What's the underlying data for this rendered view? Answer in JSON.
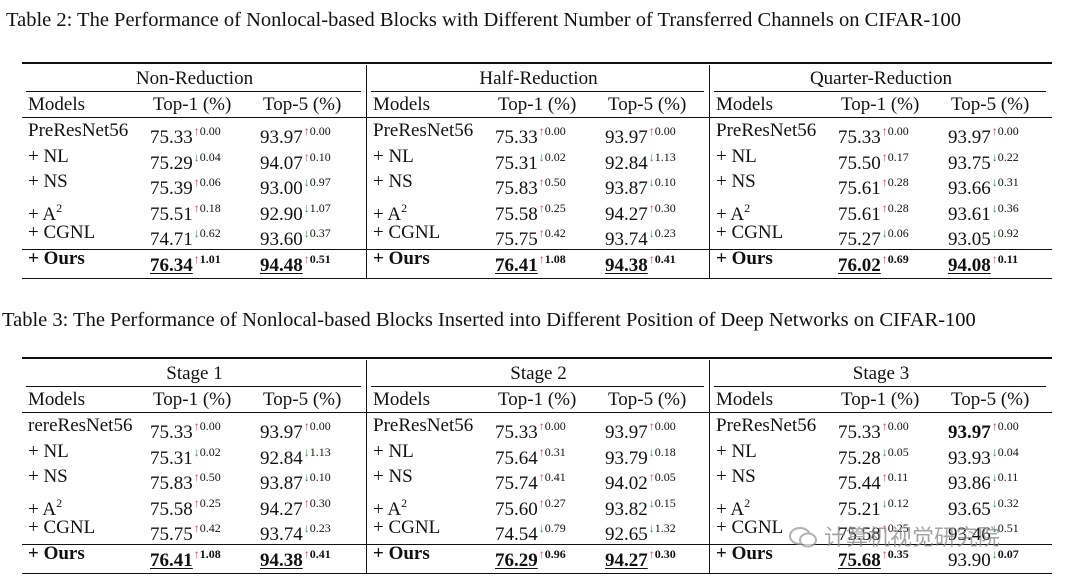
{
  "caption_table2": "Table 2: The Performance of Nonlocal-based Blocks with Different Number of Transferred Channels on CIFAR-100",
  "caption_table3": "Table 3: The Performance of Nonlocal-based Blocks Inserted into Different Position of Deep Networks on CIFAR-100",
  "watermark": "计算机视觉研究院",
  "colors": {
    "up": "#dd4444",
    "down": "#2a9a3a",
    "text": "#111111"
  },
  "table2": {
    "groups": [
      {
        "title": "Non-Reduction",
        "headers": [
          "Models",
          "Top-1 (%)",
          "Top-5 (%)"
        ],
        "rows": [
          {
            "model": "PreResNet56",
            "sup": "",
            "top1": "75.33",
            "d1": "↑0.00",
            "top5": "93.97",
            "d5": "↑0.00",
            "bold": false,
            "u1": false,
            "u5": false
          },
          {
            "model": "+ NL",
            "sup": "",
            "top1": "75.29",
            "d1": "↓0.04",
            "top5": "94.07",
            "d5": "↑0.10",
            "bold": false,
            "u1": false,
            "u5": false
          },
          {
            "model": "+ NS",
            "sup": "",
            "top1": "75.39",
            "d1": "↑0.06",
            "top5": "93.00",
            "d5": "↓0.97",
            "bold": false,
            "u1": false,
            "u5": false
          },
          {
            "model": "+ A",
            "sup": "2",
            "top1": "75.51",
            "d1": "↑0.18",
            "top5": "92.90",
            "d5": "↓1.07",
            "bold": false,
            "u1": false,
            "u5": false
          },
          {
            "model": "+ CGNL",
            "sup": "",
            "top1": "74.71",
            "d1": "↓0.62",
            "top5": "93.60",
            "d5": "↓0.37",
            "bold": false,
            "u1": false,
            "u5": false
          },
          {
            "model": "+ Ours",
            "sup": "",
            "top1": "76.34",
            "d1": "↑1.01",
            "top5": "94.48",
            "d5": "↑0.51",
            "bold": true,
            "u1": true,
            "u5": true
          }
        ]
      },
      {
        "title": "Half-Reduction",
        "headers": [
          "Models",
          "Top-1 (%)",
          "Top-5 (%)"
        ],
        "rows": [
          {
            "model": "PreResNet56",
            "sup": "",
            "top1": "75.33",
            "d1": "↑0.00",
            "top5": "93.97",
            "d5": "↑0.00",
            "bold": false,
            "u1": false,
            "u5": false
          },
          {
            "model": "+ NL",
            "sup": "",
            "top1": "75.31",
            "d1": "↓0.02",
            "top5": "92.84",
            "d5": "↓1.13",
            "bold": false,
            "u1": false,
            "u5": false
          },
          {
            "model": "+ NS",
            "sup": "",
            "top1": "75.83",
            "d1": "↑0.50",
            "top5": "93.87",
            "d5": "↓0.10",
            "bold": false,
            "u1": false,
            "u5": false
          },
          {
            "model": "+ A",
            "sup": "2",
            "top1": "75.58",
            "d1": "↑0.25",
            "top5": "94.27",
            "d5": "↑0.30",
            "bold": false,
            "u1": false,
            "u5": false
          },
          {
            "model": "+ CGNL",
            "sup": "",
            "top1": "75.75",
            "d1": "↑0.42",
            "top5": "93.74",
            "d5": "↓0.23",
            "bold": false,
            "u1": false,
            "u5": false
          },
          {
            "model": "+ Ours",
            "sup": "",
            "top1": "76.41",
            "d1": "↑1.08",
            "top5": "94.38",
            "d5": "↑0.41",
            "bold": true,
            "u1": true,
            "u5": true
          }
        ]
      },
      {
        "title": "Quarter-Reduction",
        "headers": [
          "Models",
          "Top-1 (%)",
          "Top-5 (%)"
        ],
        "rows": [
          {
            "model": "PreResNet56",
            "sup": "",
            "top1": "75.33",
            "d1": "↑0.00",
            "top5": "93.97",
            "d5": "↑0.00",
            "bold": false,
            "u1": false,
            "u5": false
          },
          {
            "model": "+ NL",
            "sup": "",
            "top1": "75.50",
            "d1": "↑0.17",
            "top5": "93.75",
            "d5": "↓0.22",
            "bold": false,
            "u1": false,
            "u5": false
          },
          {
            "model": "+ NS",
            "sup": "",
            "top1": "75.61",
            "d1": "↑0.28",
            "top5": "93.66",
            "d5": "↓0.31",
            "bold": false,
            "u1": false,
            "u5": false
          },
          {
            "model": "+ A",
            "sup": "2",
            "top1": "75.61",
            "d1": "↑0.28",
            "top5": "93.61",
            "d5": "↓0.36",
            "bold": false,
            "u1": false,
            "u5": false
          },
          {
            "model": "+ CGNL",
            "sup": "",
            "top1": "75.27",
            "d1": "↓0.06",
            "top5": "93.05",
            "d5": "↓0.92",
            "bold": false,
            "u1": false,
            "u5": false
          },
          {
            "model": "+ Ours",
            "sup": "",
            "top1": "76.02",
            "d1": "↑0.69",
            "top5": "94.08",
            "d5": "↑0.11",
            "bold": true,
            "u1": true,
            "u5": true
          }
        ]
      }
    ]
  },
  "table3": {
    "groups": [
      {
        "title": "Stage 1",
        "headers": [
          "Models",
          "Top-1 (%)",
          "Top-5 (%)"
        ],
        "rows": [
          {
            "model": "rereResNet56",
            "sup": "",
            "top1": "75.33",
            "d1": "↑0.00",
            "top5": "93.97",
            "d5": "↑0.00",
            "bold": false,
            "u1": false,
            "u5": false
          },
          {
            "model": "+ NL",
            "sup": "",
            "top1": "75.31",
            "d1": "↓0.02",
            "top5": "92.84",
            "d5": "↓1.13",
            "bold": false,
            "u1": false,
            "u5": false
          },
          {
            "model": "+ NS",
            "sup": "",
            "top1": "75.83",
            "d1": "↑0.50",
            "top5": "93.87",
            "d5": "↓0.10",
            "bold": false,
            "u1": false,
            "u5": false
          },
          {
            "model": "+ A",
            "sup": "2",
            "top1": "75.58",
            "d1": "↑0.25",
            "top5": "94.27",
            "d5": "↑0.30",
            "bold": false,
            "u1": false,
            "u5": false
          },
          {
            "model": "+ CGNL",
            "sup": "",
            "top1": "75.75",
            "d1": "↑0.42",
            "top5": "93.74",
            "d5": "↓0.23",
            "bold": false,
            "u1": false,
            "u5": false
          },
          {
            "model": "+ Ours",
            "sup": "",
            "top1": "76.41",
            "d1": "↑1.08",
            "top5": "94.38",
            "d5": "↑0.41",
            "bold": true,
            "u1": true,
            "u5": true
          }
        ]
      },
      {
        "title": "Stage 2",
        "headers": [
          "Models",
          "Top-1 (%)",
          "Top-5 (%)"
        ],
        "rows": [
          {
            "model": "PreResNet56",
            "sup": "",
            "top1": "75.33",
            "d1": "↑0.00",
            "top5": "93.97",
            "d5": "↑0.00",
            "bold": false,
            "u1": false,
            "u5": false
          },
          {
            "model": "+ NL",
            "sup": "",
            "top1": "75.64",
            "d1": "↑0.31",
            "top5": "93.79",
            "d5": "↓0.18",
            "bold": false,
            "u1": false,
            "u5": false
          },
          {
            "model": "+ NS",
            "sup": "",
            "top1": "75.74",
            "d1": "↑0.41",
            "top5": "94.02",
            "d5": "↑0.05",
            "bold": false,
            "u1": false,
            "u5": false
          },
          {
            "model": "+ A",
            "sup": "2",
            "top1": "75.60",
            "d1": "↑0.27",
            "top5": "93.82",
            "d5": "↓0.15",
            "bold": false,
            "u1": false,
            "u5": false
          },
          {
            "model": "+ CGNL",
            "sup": "",
            "top1": "74.54",
            "d1": "↓0.79",
            "top5": "92.65",
            "d5": "↓1.32",
            "bold": false,
            "u1": false,
            "u5": false
          },
          {
            "model": "+ Ours",
            "sup": "",
            "top1": "76.29",
            "d1": "↑0.96",
            "top5": "94.27",
            "d5": "↑0.30",
            "bold": true,
            "u1": true,
            "u5": true
          }
        ]
      },
      {
        "title": "Stage 3",
        "headers": [
          "Models",
          "Top-1 (%)",
          "Top-5 (%)"
        ],
        "rows": [
          {
            "model": "PreResNet56",
            "sup": "",
            "top1": "75.33",
            "d1": "↑0.00",
            "top5": "93.97",
            "d5": "↑0.00",
            "bold": false,
            "u1": false,
            "u5": false,
            "bold5": true
          },
          {
            "model": "+ NL",
            "sup": "",
            "top1": "75.28",
            "d1": "↓0.05",
            "top5": "93.93",
            "d5": "↓0.04",
            "bold": false,
            "u1": false,
            "u5": false
          },
          {
            "model": "+ NS",
            "sup": "",
            "top1": "75.44",
            "d1": "↑0.11",
            "top5": "93.86",
            "d5": "↓0.11",
            "bold": false,
            "u1": false,
            "u5": false
          },
          {
            "model": "+ A",
            "sup": "2",
            "top1": "75.21",
            "d1": "↓0.12",
            "top5": "93.65",
            "d5": "↓0.32",
            "bold": false,
            "u1": false,
            "u5": false
          },
          {
            "model": "+ CGNL",
            "sup": "",
            "top1": "75.58",
            "d1": "↑0.25",
            "top5": "93.46",
            "d5": "↓0.51",
            "bold": false,
            "u1": false,
            "u5": false
          },
          {
            "model": "+ Ours",
            "sup": "",
            "top1": "75.68",
            "d1": "↑0.35",
            "top5": "93.90",
            "d5": "↓0.07",
            "bold": true,
            "u1": true,
            "u5": false,
            "notbold5": true
          }
        ]
      }
    ]
  }
}
